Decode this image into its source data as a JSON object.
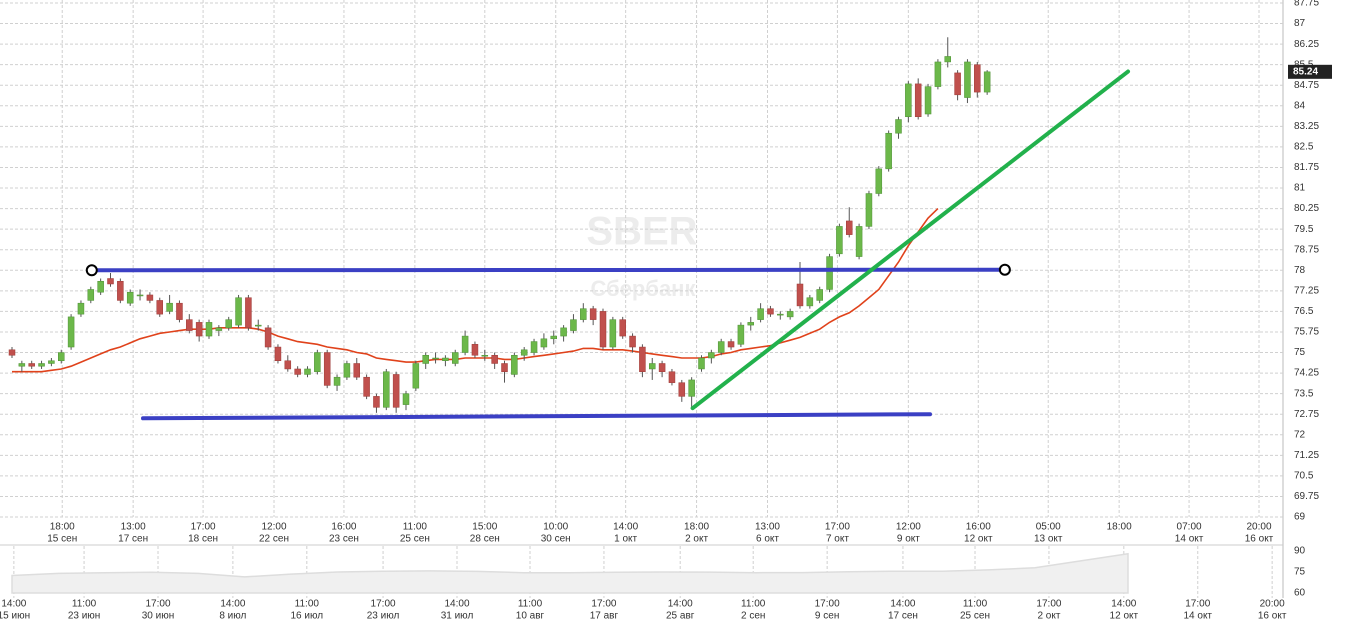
{
  "chart_data": {
    "type": "candlestick",
    "title": "SBER",
    "subtitle": "Сбербанк",
    "up_color": "#6cb84a",
    "down_color": "#c0504d",
    "wick_color": "#555555",
    "ylim": [
      69,
      87.75
    ],
    "yticks": [
      69,
      69.75,
      70.5,
      71.25,
      72,
      72.75,
      73.5,
      74.25,
      75,
      75.75,
      76.5,
      77.25,
      78,
      78.75,
      79.5,
      80.25,
      81,
      81.75,
      82.5,
      83.25,
      84,
      84.75,
      85.5,
      86.25,
      87,
      87.75
    ],
    "grid": true,
    "last_price": 85.24,
    "xticks": [
      {
        "value": 5.1,
        "label": "18:00",
        "sublabel": "15 сен"
      },
      {
        "value": 12.3,
        "label": "13:00",
        "sublabel": "17 сен"
      },
      {
        "value": 19.4,
        "label": "17:00",
        "sublabel": "18 сен"
      },
      {
        "value": 26.6,
        "label": "12:00",
        "sublabel": "22 сен"
      },
      {
        "value": 33.7,
        "label": "16:00",
        "sublabel": "23 сен"
      },
      {
        "value": 40.9,
        "label": "11:00",
        "sublabel": "25 сен"
      },
      {
        "value": 48.0,
        "label": "15:00",
        "sublabel": "28 сен"
      },
      {
        "value": 55.2,
        "label": "10:00",
        "sublabel": "30 сен"
      },
      {
        "value": 62.3,
        "label": "14:00",
        "sublabel": "1 окт"
      },
      {
        "value": 69.5,
        "label": "18:00",
        "sublabel": "2 окт"
      },
      {
        "value": 76.7,
        "label": "13:00",
        "sublabel": "6 окт"
      },
      {
        "value": 83.8,
        "label": "17:00",
        "sublabel": "7 окт"
      },
      {
        "value": 91.0,
        "label": "12:00",
        "sublabel": "9 окт"
      },
      {
        "value": 98.1,
        "label": "16:00",
        "sublabel": "12 окт"
      },
      {
        "value": 105.2,
        "label": "05:00",
        "sublabel": "13 окт"
      },
      {
        "value": 112.4,
        "label": "18:00"
      },
      {
        "value": 119.5,
        "label": "07:00",
        "sublabel": "14 окт"
      },
      {
        "value": 126.6,
        "label": "20:00",
        "sublabel": "16 окт"
      }
    ],
    "candles": [
      [
        75.1,
        75.2,
        74.8,
        74.9
      ],
      [
        74.5,
        74.7,
        74.3,
        74.6
      ],
      [
        74.6,
        74.7,
        74.4,
        74.5
      ],
      [
        74.5,
        74.7,
        74.4,
        74.6
      ],
      [
        74.6,
        74.8,
        74.5,
        74.7
      ],
      [
        74.7,
        75.1,
        74.6,
        75.0
      ],
      [
        75.2,
        76.4,
        75.1,
        76.3
      ],
      [
        76.4,
        76.9,
        76.3,
        76.8
      ],
      [
        76.9,
        77.4,
        76.8,
        77.3
      ],
      [
        77.2,
        77.7,
        77.1,
        77.6
      ],
      [
        77.7,
        77.9,
        77.4,
        77.5
      ],
      [
        77.6,
        77.7,
        76.8,
        76.9
      ],
      [
        76.8,
        77.3,
        76.7,
        77.2
      ],
      [
        77.1,
        77.3,
        76.9,
        77.1
      ],
      [
        77.1,
        77.2,
        76.8,
        76.9
      ],
      [
        76.9,
        77.0,
        76.3,
        76.4
      ],
      [
        76.5,
        77.1,
        76.4,
        76.8
      ],
      [
        76.8,
        76.9,
        76.1,
        76.2
      ],
      [
        76.2,
        76.4,
        75.7,
        75.8
      ],
      [
        76.1,
        76.2,
        75.4,
        75.6
      ],
      [
        75.6,
        76.2,
        75.5,
        76.1
      ],
      [
        75.8,
        76.0,
        75.6,
        75.9
      ],
      [
        75.9,
        76.3,
        75.8,
        76.2
      ],
      [
        76.0,
        77.1,
        75.9,
        77.0
      ],
      [
        77.0,
        77.1,
        75.8,
        75.9
      ],
      [
        76.0,
        76.2,
        75.8,
        76.0
      ],
      [
        75.9,
        76.0,
        75.1,
        75.2
      ],
      [
        75.2,
        75.3,
        74.6,
        74.7
      ],
      [
        74.7,
        74.9,
        74.3,
        74.4
      ],
      [
        74.4,
        74.5,
        74.1,
        74.2
      ],
      [
        74.2,
        74.5,
        74.1,
        74.4
      ],
      [
        74.3,
        75.1,
        74.2,
        75.0
      ],
      [
        75.0,
        75.1,
        73.7,
        73.8
      ],
      [
        73.8,
        74.2,
        73.6,
        74.1
      ],
      [
        74.1,
        74.7,
        74.0,
        74.6
      ],
      [
        74.6,
        74.8,
        74.0,
        74.1
      ],
      [
        74.1,
        74.2,
        73.3,
        73.4
      ],
      [
        73.4,
        73.5,
        72.8,
        73.0
      ],
      [
        73.0,
        74.4,
        72.9,
        74.3
      ],
      [
        74.2,
        74.3,
        72.8,
        73.0
      ],
      [
        73.1,
        73.6,
        72.9,
        73.5
      ],
      [
        73.7,
        74.7,
        73.6,
        74.6
      ],
      [
        74.6,
        75.0,
        74.4,
        74.9
      ],
      [
        74.8,
        75.0,
        74.6,
        74.8
      ],
      [
        74.7,
        74.9,
        74.5,
        74.8
      ],
      [
        74.6,
        75.1,
        74.5,
        75.0
      ],
      [
        75.0,
        75.8,
        74.9,
        75.6
      ],
      [
        75.3,
        75.4,
        74.8,
        74.9
      ],
      [
        74.9,
        75.1,
        74.7,
        74.9
      ],
      [
        74.9,
        75.0,
        74.4,
        74.6
      ],
      [
        74.6,
        74.7,
        73.9,
        74.3
      ],
      [
        74.2,
        75.0,
        74.1,
        74.9
      ],
      [
        74.9,
        75.2,
        74.7,
        75.1
      ],
      [
        75.0,
        75.5,
        74.9,
        75.4
      ],
      [
        75.2,
        75.7,
        75.1,
        75.5
      ],
      [
        75.5,
        75.8,
        75.3,
        75.6
      ],
      [
        75.6,
        76.0,
        75.4,
        75.9
      ],
      [
        75.8,
        76.4,
        75.7,
        76.2
      ],
      [
        76.2,
        76.8,
        76.1,
        76.6
      ],
      [
        76.6,
        76.7,
        76.0,
        76.2
      ],
      [
        76.5,
        76.6,
        75.1,
        75.2
      ],
      [
        75.2,
        76.3,
        75.1,
        76.2
      ],
      [
        76.2,
        76.3,
        75.5,
        75.6
      ],
      [
        75.6,
        75.7,
        75.0,
        75.2
      ],
      [
        75.2,
        75.3,
        74.1,
        74.3
      ],
      [
        74.4,
        74.8,
        74.0,
        74.6
      ],
      [
        74.6,
        74.7,
        74.1,
        74.3
      ],
      [
        74.3,
        74.4,
        73.8,
        73.9
      ],
      [
        73.9,
        74.0,
        73.2,
        73.4
      ],
      [
        73.4,
        74.1,
        73.0,
        74.0
      ],
      [
        74.4,
        74.9,
        74.3,
        74.8
      ],
      [
        74.8,
        75.1,
        74.6,
        75.0
      ],
      [
        75.0,
        75.5,
        74.9,
        75.4
      ],
      [
        75.4,
        75.5,
        75.1,
        75.2
      ],
      [
        75.3,
        76.1,
        75.2,
        76.0
      ],
      [
        76.0,
        76.3,
        75.8,
        76.1
      ],
      [
        76.2,
        76.8,
        76.1,
        76.6
      ],
      [
        76.6,
        76.7,
        76.3,
        76.4
      ],
      [
        76.4,
        76.5,
        76.2,
        76.4
      ],
      [
        76.3,
        76.6,
        76.2,
        76.5
      ],
      [
        77.5,
        78.3,
        76.6,
        76.7
      ],
      [
        76.7,
        77.1,
        76.6,
        77.0
      ],
      [
        76.9,
        77.4,
        76.8,
        77.3
      ],
      [
        77.3,
        78.6,
        77.2,
        78.5
      ],
      [
        78.6,
        79.7,
        78.5,
        79.6
      ],
      [
        79.8,
        80.3,
        79.2,
        79.3
      ],
      [
        78.5,
        79.7,
        78.4,
        79.6
      ],
      [
        79.6,
        80.9,
        79.5,
        80.8
      ],
      [
        80.8,
        81.8,
        80.7,
        81.7
      ],
      [
        81.7,
        83.1,
        81.6,
        83.0
      ],
      [
        83.0,
        83.6,
        82.8,
        83.5
      ],
      [
        83.6,
        84.9,
        83.4,
        84.8
      ],
      [
        84.8,
        85.0,
        83.5,
        83.6
      ],
      [
        83.7,
        84.8,
        83.6,
        84.7
      ],
      [
        84.7,
        85.7,
        84.6,
        85.6
      ],
      [
        85.6,
        86.5,
        85.4,
        85.8
      ],
      [
        85.2,
        85.3,
        84.2,
        84.4
      ],
      [
        84.3,
        85.7,
        84.1,
        85.6
      ],
      [
        85.5,
        85.6,
        84.3,
        84.5
      ],
      [
        84.5,
        85.3,
        84.4,
        85.24
      ]
    ],
    "ma": {
      "color": "#e0421b",
      "values": [
        74.3,
        74.3,
        74.3,
        74.3,
        74.35,
        74.4,
        74.5,
        74.65,
        74.8,
        74.95,
        75.1,
        75.2,
        75.35,
        75.5,
        75.6,
        75.7,
        75.75,
        75.8,
        75.85,
        75.85,
        75.85,
        75.9,
        75.9,
        75.9,
        75.9,
        75.85,
        75.75,
        75.6,
        75.5,
        75.4,
        75.35,
        75.3,
        75.2,
        75.15,
        75.1,
        75.0,
        74.95,
        74.8,
        74.75,
        74.7,
        74.65,
        74.65,
        74.7,
        74.75,
        74.75,
        74.75,
        74.8,
        74.8,
        74.8,
        74.8,
        74.75,
        74.75,
        74.8,
        74.85,
        74.9,
        74.95,
        75.0,
        75.05,
        75.15,
        75.15,
        75.1,
        75.1,
        75.1,
        75.05,
        75.0,
        74.95,
        74.9,
        74.85,
        74.8,
        74.8,
        74.8,
        74.85,
        74.95,
        75.0,
        75.1,
        75.15,
        75.2,
        75.25,
        75.35,
        75.45,
        75.55,
        75.7,
        75.85,
        76.1,
        76.3,
        76.45,
        76.7,
        77.0,
        77.3,
        77.8,
        78.3,
        78.9,
        79.4,
        79.9,
        80.25,
        null,
        null,
        null,
        null,
        null
      ]
    },
    "drawings": [
      {
        "color": "#3b40c4",
        "points": [
          [
            8.1,
            78.0
          ],
          [
            100.8,
            78.02
          ]
        ],
        "handles": true
      },
      {
        "color": "#3b40c4",
        "points": [
          [
            13.3,
            72.6
          ],
          [
            93.2,
            72.75
          ]
        ],
        "handles": false
      },
      {
        "color": "#22b14c",
        "points": [
          [
            69.1,
            72.97
          ],
          [
            113.3,
            85.25
          ]
        ],
        "handles": false
      }
    ],
    "navigator": {
      "color": "#dddddd",
      "ylim": [
        60,
        90
      ],
      "yticks": [
        90,
        75,
        60
      ],
      "values": [
        72.5,
        74,
        74.5,
        74.8,
        74,
        71.5,
        73.5,
        75,
        75.6,
        75.8,
        75.4,
        74.5,
        74.4,
        74.8,
        75,
        74.9,
        74.5,
        74.6,
        75.2,
        75.6,
        75.6,
        76.5,
        78,
        83,
        88
      ],
      "xticks": [
        {
          "value": 0.04,
          "label": "14:00",
          "sublabel": "15 июн"
        },
        {
          "value": 1.55,
          "label": "11:00",
          "sublabel": "23 июн"
        },
        {
          "value": 3.14,
          "label": "17:00",
          "sublabel": "30 июн"
        },
        {
          "value": 4.75,
          "label": "14:00",
          "sublabel": "8 июл"
        },
        {
          "value": 6.34,
          "label": "11:00",
          "sublabel": "16 июл"
        },
        {
          "value": 7.98,
          "label": "17:00",
          "sublabel": "23 июл"
        },
        {
          "value": 9.57,
          "label": "14:00",
          "sublabel": "31 июл"
        },
        {
          "value": 11.14,
          "label": "11:00",
          "sublabel": "10 авг"
        },
        {
          "value": 12.73,
          "label": "17:00",
          "sublabel": "17 авг"
        },
        {
          "value": 14.37,
          "label": "14:00",
          "sublabel": "25 авг"
        },
        {
          "value": 15.94,
          "label": "11:00",
          "sublabel": "2 сен"
        },
        {
          "value": 17.53,
          "label": "17:00",
          "sublabel": "9 сен"
        },
        {
          "value": 19.16,
          "label": "14:00",
          "sublabel": "17 сен"
        },
        {
          "value": 20.71,
          "label": "11:00",
          "sublabel": "25 сен"
        },
        {
          "value": 22.3,
          "label": "17:00",
          "sublabel": "2 окт"
        },
        {
          "value": 23.91,
          "label": "14:00",
          "sublabel": "12 окт"
        },
        {
          "value": 25.5,
          "label": "17:00",
          "sublabel": "14 окт"
        },
        {
          "value": 27.1,
          "label": "20:00",
          "sublabel": "16 окт"
        }
      ]
    }
  }
}
